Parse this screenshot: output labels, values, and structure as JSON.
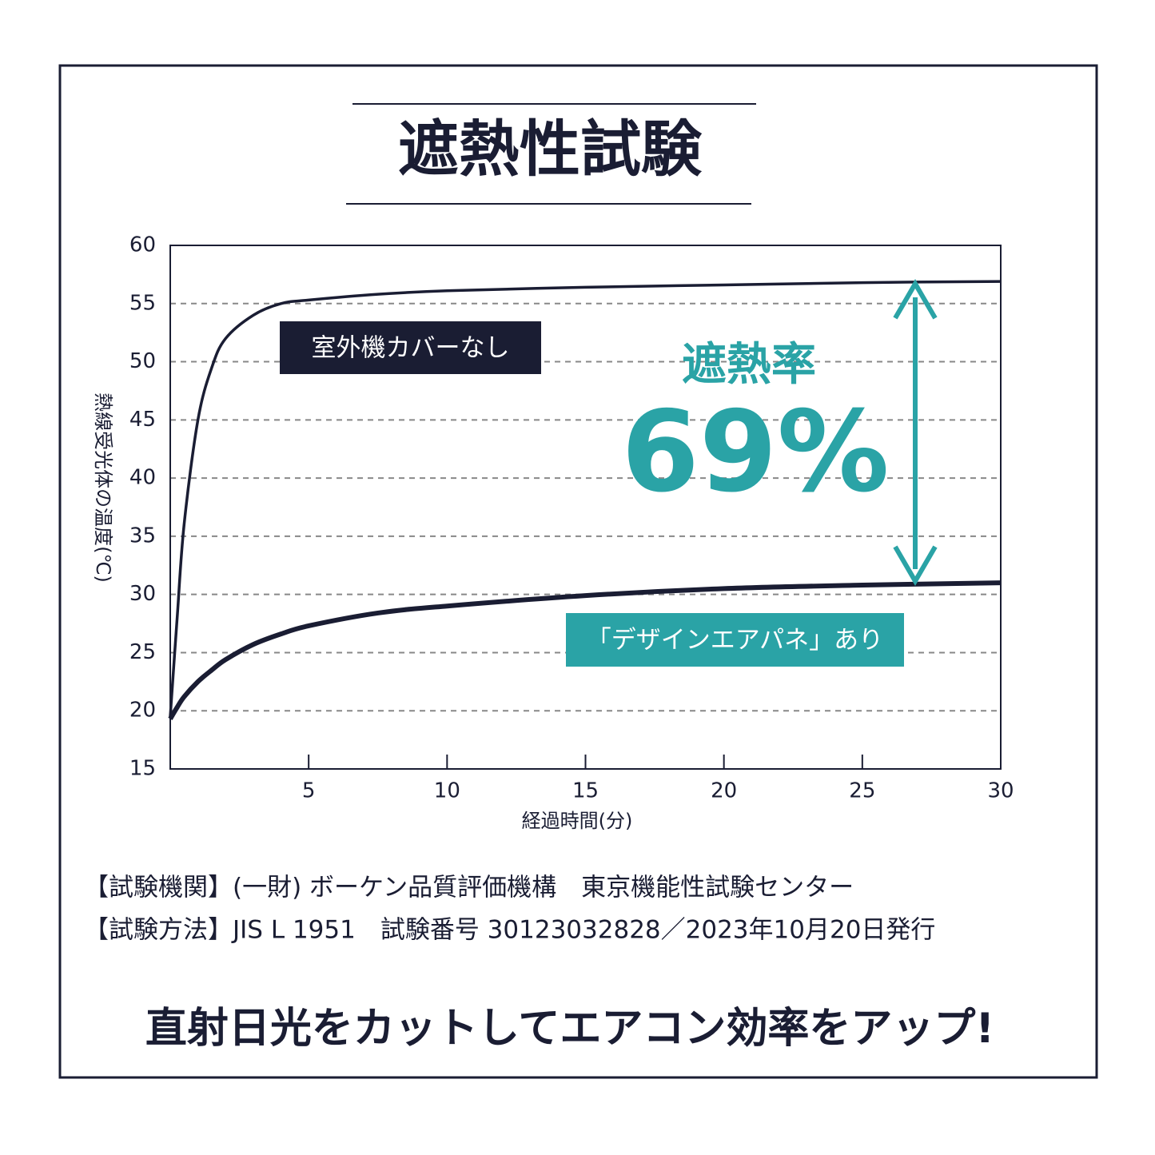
{
  "chart_data": {
    "type": "line",
    "title": "遮熱性試験",
    "y_label": "熱線受光体の温度(℃)",
    "x_label": "経過時間(分)",
    "x": [
      0,
      0.25,
      0.5,
      1,
      1.5,
      2,
      3,
      4,
      5,
      7.5,
      10,
      15,
      20,
      25,
      30
    ],
    "series": [
      {
        "name": "室外機カバーなし",
        "color": "#1a1d33",
        "values": [
          19.5,
          28,
          36,
          45,
          49.5,
          52,
          54,
          55,
          55.3,
          55.8,
          56.1,
          56.4,
          56.6,
          56.8,
          56.9
        ]
      },
      {
        "name": "「デザインエアパネ」あり",
        "color": "#2aa3a6",
        "values": [
          19.3,
          20.3,
          21.2,
          22.5,
          23.5,
          24.4,
          25.7,
          26.6,
          27.3,
          28.4,
          29.0,
          29.9,
          30.5,
          30.8,
          31.0
        ]
      }
    ],
    "xlim": [
      0,
      30
    ],
    "xticks": [
      5,
      10,
      15,
      20,
      25,
      30
    ],
    "ylim": [
      15,
      60
    ],
    "yticks": [
      15,
      20,
      25,
      30,
      35,
      40,
      45,
      50,
      55,
      60
    ],
    "grid": true,
    "annotation": {
      "label": "遮熱率",
      "value": "69%"
    },
    "notes": [
      "【試験機関】(一財) ボーケン品質評価機構　東京機能性試験センター",
      "【試験方法】JIS L 1951　試験番号 30123032828／2023年10月20日発行"
    ],
    "tagline": "直射日光をカットしてエアコン効率をアップ!"
  }
}
